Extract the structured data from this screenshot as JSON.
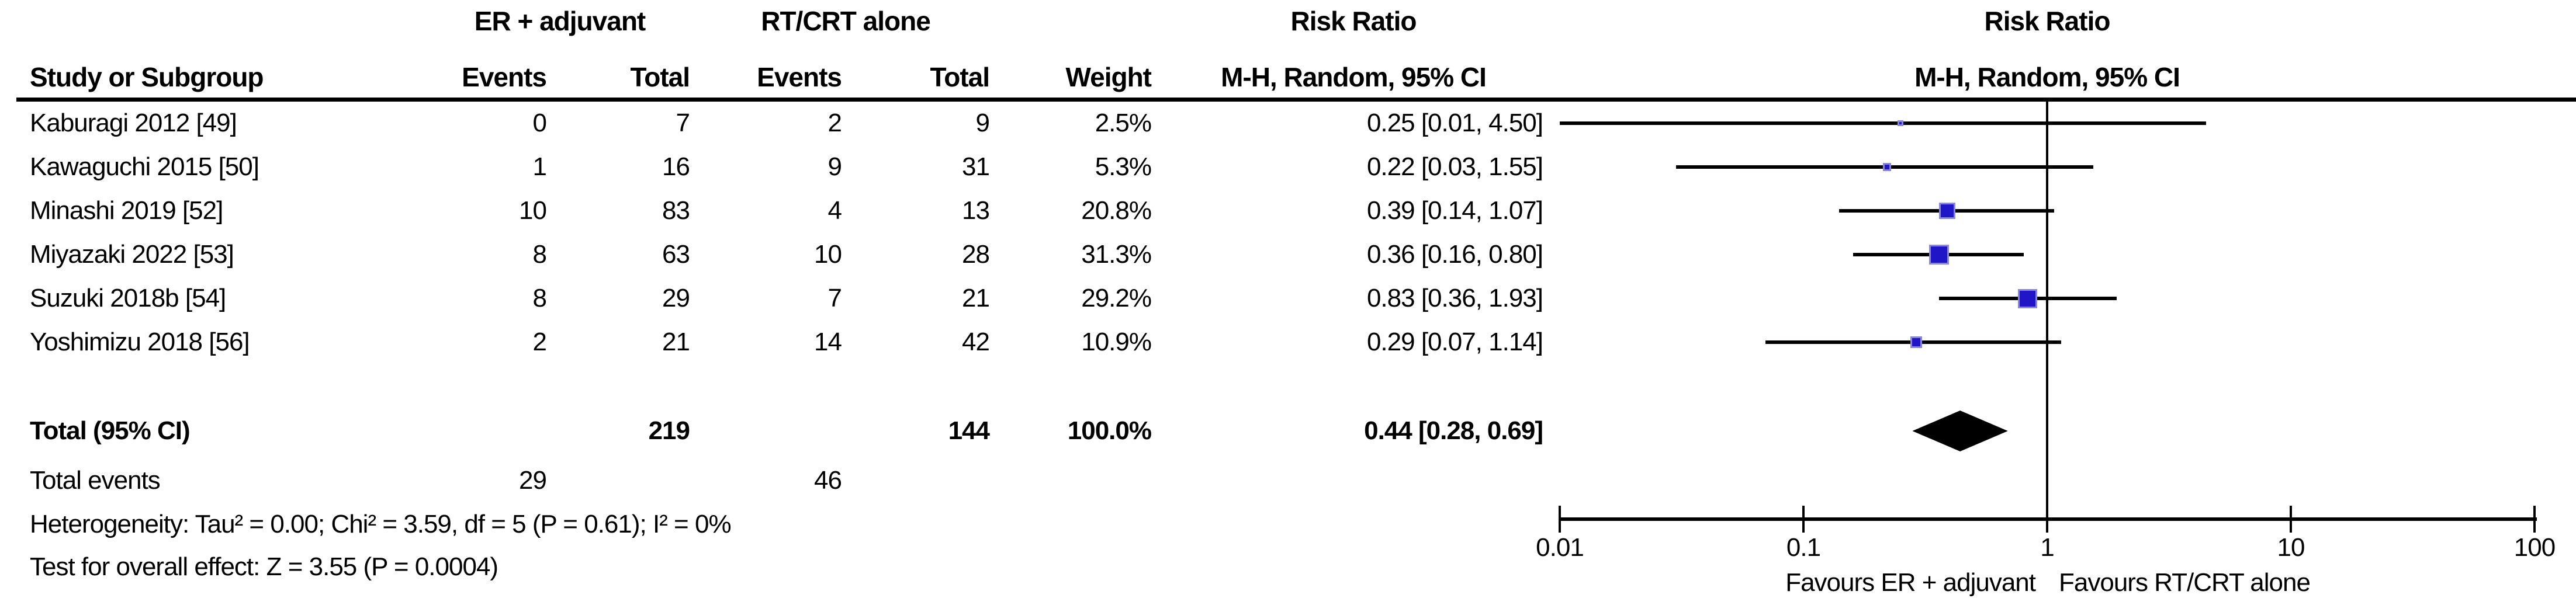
{
  "header": {
    "group1": "ER + adjuvant",
    "group2": "RT/CRT alone",
    "risk_ratio_col": "Risk Ratio",
    "risk_ratio_plot": "Risk Ratio",
    "method_col": "M-H, Random, 95% CI",
    "method_plot": "M-H, Random, 95% CI",
    "study_col": "Study or Subgroup",
    "events_col_1": "Events",
    "total_col_1": "Total",
    "events_col_2": "Events",
    "total_col_2": "Total",
    "weight_col": "Weight"
  },
  "chart_data": {
    "type": "forest",
    "effect_measure": "Risk Ratio",
    "pooling_method": "M-H, Random, 95% CI",
    "x_scale": "log",
    "x_ticks": [
      0.01,
      0.1,
      1,
      10,
      100
    ],
    "x_tick_labels": [
      "0.01",
      "0.1",
      "1",
      "10",
      "100"
    ],
    "favours_left": "Favours ER + adjuvant",
    "favours_right": "Favours RT/CRT alone",
    "studies": [
      {
        "label": "Kaburagi 2012 [49]",
        "events1": "0",
        "total1": "7",
        "events2": "2",
        "total2": "9",
        "weight": 2.5,
        "weight_label": "2.5%",
        "rr": 0.25,
        "lo": 0.01,
        "hi": 4.5,
        "ci_label": "0.25 [0.01, 4.50]"
      },
      {
        "label": "Kawaguchi 2015 [50]",
        "events1": "1",
        "total1": "16",
        "events2": "9",
        "total2": "31",
        "weight": 5.3,
        "weight_label": "5.3%",
        "rr": 0.22,
        "lo": 0.03,
        "hi": 1.55,
        "ci_label": "0.22 [0.03, 1.55]"
      },
      {
        "label": "Minashi 2019 [52]",
        "events1": "10",
        "total1": "83",
        "events2": "4",
        "total2": "13",
        "weight": 20.8,
        "weight_label": "20.8%",
        "rr": 0.39,
        "lo": 0.14,
        "hi": 1.07,
        "ci_label": "0.39 [0.14, 1.07]"
      },
      {
        "label": "Miyazaki 2022 [53]",
        "events1": "8",
        "total1": "63",
        "events2": "10",
        "total2": "28",
        "weight": 31.3,
        "weight_label": "31.3%",
        "rr": 0.36,
        "lo": 0.16,
        "hi": 0.8,
        "ci_label": "0.36 [0.16, 0.80]"
      },
      {
        "label": "Suzuki 2018b [54]",
        "events1": "8",
        "total1": "29",
        "events2": "7",
        "total2": "21",
        "weight": 29.2,
        "weight_label": "29.2%",
        "rr": 0.83,
        "lo": 0.36,
        "hi": 1.93,
        "ci_label": "0.83 [0.36, 1.93]"
      },
      {
        "label": "Yoshimizu 2018 [56]",
        "events1": "2",
        "total1": "21",
        "events2": "14",
        "total2": "42",
        "weight": 10.9,
        "weight_label": "10.9%",
        "rr": 0.29,
        "lo": 0.07,
        "hi": 1.14,
        "ci_label": "0.29 [0.07, 1.14]"
      }
    ],
    "total": {
      "label": "Total (95% CI)",
      "total1": "219",
      "total2": "144",
      "weight_label": "100.0%",
      "rr": 0.44,
      "lo": 0.28,
      "hi": 0.69,
      "ci_label": "0.44 [0.28, 0.69]"
    },
    "total_events": {
      "label": "Total events",
      "events1": "29",
      "events2": "46"
    },
    "heterogeneity": "Heterogeneity: Tau² = 0.00; Chi² = 3.59, df = 5 (P = 0.61); I² = 0%",
    "overall_effect": "Test for overall effect: Z = 3.55 (P = 0.0004)"
  },
  "colors": {
    "marker_fill": "#2016c8",
    "marker_border": "#8a86dc",
    "ink": "#000000"
  }
}
